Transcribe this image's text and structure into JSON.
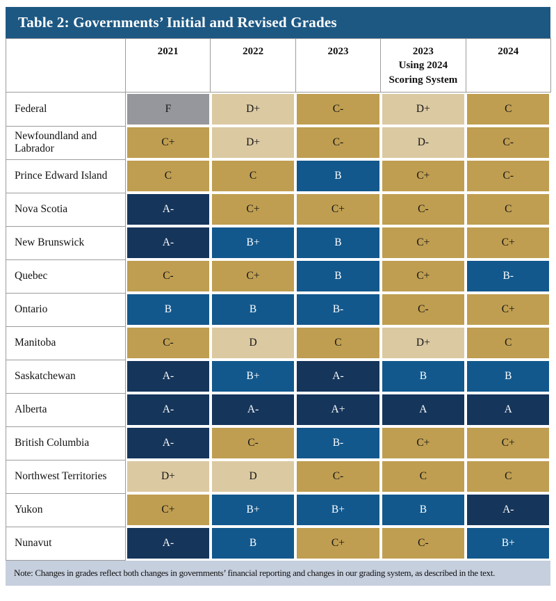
{
  "title": "Table 2: Governments’ Initial and Revised Grades",
  "columns": [
    "2021",
    "2022",
    "2023",
    "2023\nUsing 2024\nScoring System",
    "2024"
  ],
  "rows": [
    {
      "label": "Federal",
      "grades": [
        "F",
        "D+",
        "C-",
        "D+",
        "C"
      ]
    },
    {
      "label": "Newfoundland and Labrador",
      "grades": [
        "C+",
        "D+",
        "C-",
        "D-",
        "C-"
      ]
    },
    {
      "label": "Prince Edward Island",
      "grades": [
        "C",
        "C",
        "B",
        "C+",
        "C-"
      ]
    },
    {
      "label": "Nova Scotia",
      "grades": [
        "A-",
        "C+",
        "C+",
        "C-",
        "C"
      ]
    },
    {
      "label": "New Brunswick",
      "grades": [
        "A-",
        "B+",
        "B",
        "C+",
        "C+"
      ]
    },
    {
      "label": "Quebec",
      "grades": [
        "C-",
        "C+",
        "B",
        "C+",
        "B-"
      ]
    },
    {
      "label": "Ontario",
      "grades": [
        "B",
        "B",
        "B-",
        "C-",
        "C+"
      ]
    },
    {
      "label": "Manitoba",
      "grades": [
        "C-",
        "D",
        "C",
        "D+",
        "C"
      ]
    },
    {
      "label": "Saskatchewan",
      "grades": [
        "A-",
        "B+",
        "A-",
        "B",
        "B"
      ]
    },
    {
      "label": "Alberta",
      "grades": [
        "A-",
        "A-",
        "A+",
        "A",
        "A"
      ]
    },
    {
      "label": "British Columbia",
      "grades": [
        "A-",
        "C-",
        "B-",
        "C+",
        "C+"
      ]
    },
    {
      "label": "Northwest Territories",
      "grades": [
        "D+",
        "D",
        "C-",
        "C",
        "C"
      ]
    },
    {
      "label": "Yukon",
      "grades": [
        "C+",
        "B+",
        "B+",
        "B",
        "A-"
      ]
    },
    {
      "label": "Nunavut",
      "grades": [
        "A-",
        "B",
        "C+",
        "C-",
        "B+"
      ]
    }
  ],
  "note": "Note: Changes in grades reflect both changes in governments’ financial reporting and changes in our grading system, as described in the text.",
  "colors": {
    "title_bar_bg": "#1d5883",
    "title_text": "#ffffff",
    "note_bg": "#c6cfde",
    "grade_fill": {
      "A": "#15355b",
      "B": "#12588d",
      "C": "#bf9e51",
      "D": "#dbc9a2",
      "F": "#95979c"
    },
    "grade_text": {
      "A": "#ffffff",
      "B": "#ffffff",
      "C": "#161616",
      "D": "#161616",
      "F": "#161616"
    }
  }
}
